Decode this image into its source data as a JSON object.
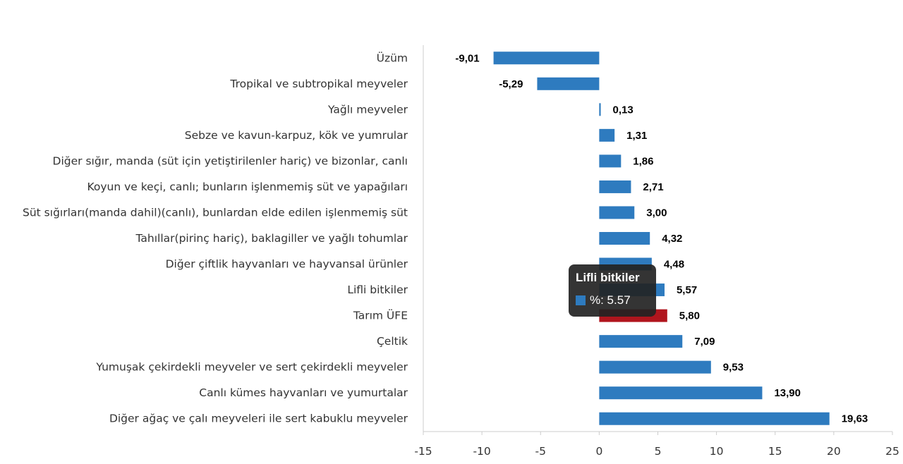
{
  "chart_data": {
    "type": "bar",
    "orientation": "horizontal",
    "categories": [
      "Üzüm",
      "Tropikal ve subtropikal meyveler",
      "Yağlı meyveler",
      "Sebze ve kavun-karpuz, kök ve yumrular",
      "Diğer sığır, manda (süt için yetiştirilenler hariç) ve bizonlar, canlı",
      "Koyun ve keçi, canlı; bunların işlenmemiş süt ve yapağıları",
      "Süt sığırları(manda dahil)(canlı), bunlardan elde edilen işlenmemiş süt",
      "Tahıllar(pirinç hariç), baklagiller ve yağlı tohumlar",
      "Diğer çiftlik hayvanları ve hayvansal ürünler",
      "Lifli bitkiler",
      "Tarım ÜFE",
      "Çeltik",
      "Yumuşak çekirdekli meyveler ve sert çekirdekli meyveler",
      "Canlı kümes hayvanları ve yumurtalar",
      "Diğer ağaç ve çalı meyveleri ile sert kabuklu meyveler"
    ],
    "values": [
      -9.01,
      -5.29,
      0.13,
      1.31,
      1.86,
      2.71,
      3.0,
      4.32,
      4.48,
      5.57,
      5.8,
      7.09,
      9.53,
      13.9,
      19.63
    ],
    "data_labels": [
      "-9,01",
      "-5,29",
      "0,13",
      "1,31",
      "1,86",
      "2,71",
      "3,00",
      "4,32",
      "4,48",
      "5,57",
      "5,80",
      "7,09",
      "9,53",
      "13,90",
      "19,63"
    ],
    "highlight_category": "Tarım ÜFE",
    "bar_color": "#2e7bbf",
    "highlight_color": "#b0151d",
    "xlim": [
      -15,
      25
    ],
    "xticks": [
      -15,
      -10,
      -5,
      0,
      5,
      10,
      15,
      20,
      25
    ],
    "grid": false,
    "title": "",
    "xlabel": "",
    "ylabel": ""
  },
  "tooltip": {
    "title": "Lifli bitkiler",
    "value_text": "%: 5.57",
    "swatch_color": "#2e7bbf"
  }
}
